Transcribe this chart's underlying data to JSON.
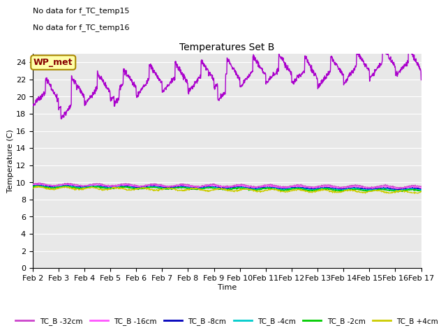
{
  "title": "Temperatures Set B",
  "xlabel": "Time",
  "ylabel": "Temperature (C)",
  "annotations": [
    "No data for f_TC_temp15",
    "No data for f_TC_temp16"
  ],
  "wp_met_label": "WP_met",
  "ylim": [
    0,
    25
  ],
  "yticks": [
    0,
    2,
    4,
    6,
    8,
    10,
    12,
    14,
    16,
    18,
    20,
    22,
    24
  ],
  "xtick_labels": [
    "Feb 2",
    "Feb 3",
    "Feb 4",
    "Feb 5",
    "Feb 6",
    "Feb 7",
    "Feb 8",
    "Feb 9",
    "Feb 10",
    "Feb 11",
    "Feb 12",
    "Feb 13",
    "Feb 14",
    "Feb 15",
    "Feb 16",
    "Feb 17"
  ],
  "background_color": "#e8e8e8",
  "legend_entries": [
    "TC_B -32cm",
    "TC_B -16cm",
    "TC_B -8cm",
    "TC_B -4cm",
    "TC_B -2cm",
    "TC_B +4cm"
  ],
  "legend_colors": [
    "#cc44cc",
    "#ff55ff",
    "#0000bb",
    "#00cccc",
    "#00cc00",
    "#cccc00"
  ],
  "wp_met_color": "#aa00cc",
  "wp_met_label_color": "#880000",
  "wp_met_bg": "#ffffaa",
  "wp_met_border": "#aa8800",
  "n_points": 1440,
  "figsize": [
    6.4,
    4.8
  ],
  "dpi": 100
}
